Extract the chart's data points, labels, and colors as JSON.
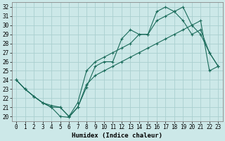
{
  "xlabel": "Humidex (Indice chaleur)",
  "bg_color": "#cce8e8",
  "grid_color": "#aacfcf",
  "line_color": "#1a6b5a",
  "xlim": [
    -0.5,
    23.5
  ],
  "ylim": [
    19.5,
    32.5
  ],
  "xtick_labels": [
    "0",
    "1",
    "2",
    "3",
    "4",
    "5",
    "6",
    "7",
    "8",
    "9",
    "10",
    "11",
    "12",
    "13",
    "14",
    "15",
    "16",
    "17",
    "18",
    "19",
    "20",
    "21",
    "22",
    "23"
  ],
  "xtick_vals": [
    0,
    1,
    2,
    3,
    4,
    5,
    6,
    7,
    8,
    9,
    10,
    11,
    12,
    13,
    14,
    15,
    16,
    17,
    18,
    19,
    20,
    21,
    22,
    23
  ],
  "ytick_vals": [
    20,
    21,
    22,
    23,
    24,
    25,
    26,
    27,
    28,
    29,
    30,
    31,
    32
  ],
  "line1_x": [
    0,
    1,
    2,
    3,
    4,
    5,
    6,
    7,
    8,
    9,
    10,
    11,
    12,
    13,
    14,
    15,
    16,
    17,
    18,
    19,
    20,
    21,
    22,
    23
  ],
  "line1_y": [
    24.0,
    23.0,
    22.2,
    21.5,
    21.0,
    20.0,
    19.9,
    21.0,
    23.2,
    25.5,
    26.0,
    26.0,
    28.5,
    29.5,
    29.0,
    29.0,
    31.5,
    32.0,
    31.5,
    30.5,
    29.0,
    29.5,
    27.0,
    25.5
  ],
  "line2_x": [
    0,
    1,
    2,
    3,
    4,
    5,
    6,
    7,
    8,
    9,
    10,
    11,
    12,
    13,
    14,
    15,
    16,
    17,
    18,
    19,
    20,
    21,
    22,
    23
  ],
  "line2_y": [
    24.0,
    23.0,
    22.2,
    21.5,
    21.2,
    21.0,
    20.0,
    21.5,
    25.0,
    26.0,
    26.5,
    27.0,
    27.5,
    28.0,
    29.0,
    29.0,
    30.5,
    31.0,
    31.5,
    32.0,
    30.0,
    29.0,
    27.0,
    25.5
  ],
  "line3_x": [
    0,
    1,
    2,
    3,
    4,
    5,
    6,
    7,
    8,
    9,
    10,
    11,
    12,
    13,
    14,
    15,
    16,
    17,
    18,
    19,
    20,
    21,
    22,
    23
  ],
  "line3_y": [
    24.0,
    23.0,
    22.2,
    21.5,
    21.0,
    21.0,
    20.0,
    21.0,
    23.5,
    24.5,
    25.0,
    25.5,
    26.0,
    26.5,
    27.0,
    27.5,
    28.0,
    28.5,
    29.0,
    29.5,
    30.0,
    30.5,
    25.0,
    25.5
  ],
  "xlabel_fontsize": 6.5,
  "tick_fontsize": 5.5
}
